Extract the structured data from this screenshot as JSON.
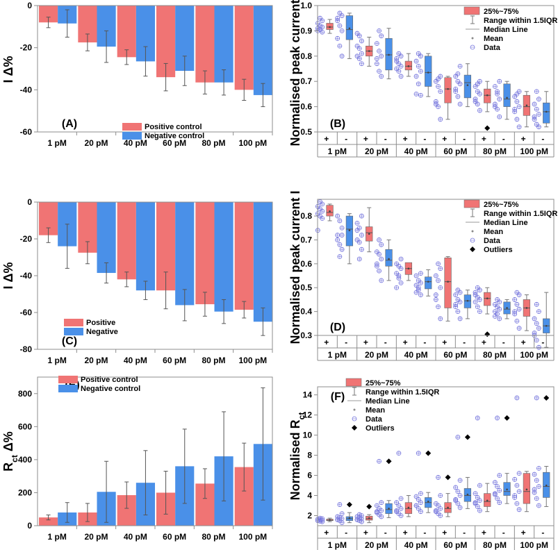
{
  "colors": {
    "pos": "#f07474",
    "neg": "#4a90e8",
    "dot": "#7777dd",
    "axis": "#8c8c8c",
    "err": "#555555"
  },
  "chart_data": [
    {
      "id": "A",
      "type": "bar",
      "panel_label": "(A)",
      "ylabel_main": "I",
      "ylabel_rest": " Δ%",
      "categories": [
        "1 pM",
        "20 pM",
        "40 pM",
        "60 pM",
        "80 pM",
        "100 pM"
      ],
      "ylim": [
        -60,
        0
      ],
      "yticks": [
        "0",
        "-20",
        "-40",
        "-60"
      ],
      "series": [
        {
          "name": "Positive control",
          "values": [
            -8,
            -17.5,
            -24.5,
            -34,
            -36.5,
            -40
          ],
          "err": [
            2.5,
            4,
            3.5,
            6.5,
            5.5,
            5
          ]
        },
        {
          "name": "Negative control",
          "values": [
            -8.5,
            -19.5,
            -26.5,
            -31,
            -36.5,
            -42.5
          ],
          "err": [
            6.5,
            7.5,
            7,
            7,
            6,
            5.5
          ]
        }
      ]
    },
    {
      "id": "B",
      "type": "box",
      "panel_label": "(B)",
      "ylabel": "Normalised peak current I",
      "ylim": [
        0.5,
        1.0
      ],
      "yticks": [
        "0.5",
        "0.6",
        "0.7",
        "0.8",
        "0.9",
        "1.0"
      ],
      "groups": [
        "1 pM",
        "20 pM",
        "40 pM",
        "60 pM",
        "80 pM",
        "100 pM"
      ],
      "signs": [
        "+",
        "-"
      ],
      "legend": [
        "25%~75%",
        "Range within 1.5IQR",
        "Median Line",
        "Mean",
        "Data"
      ],
      "boxes": [
        {
          "q1": 0.905,
          "q3": 0.93,
          "med": 0.915,
          "mean": 0.915,
          "wlo": 0.89,
          "whi": 0.945,
          "data": [
            0.895,
            0.905,
            0.91,
            0.915,
            0.92,
            0.93,
            0.94,
            0.95,
            0.9
          ]
        },
        {
          "q1": 0.865,
          "q3": 0.96,
          "med": 0.905,
          "mean": 0.91,
          "wlo": 0.79,
          "whi": 0.97,
          "data": [
            0.8,
            0.84,
            0.87,
            0.9,
            0.92,
            0.94,
            0.96,
            0.97,
            0.95
          ]
        },
        {
          "q1": 0.8,
          "q3": 0.84,
          "med": 0.82,
          "mean": 0.82,
          "wlo": 0.76,
          "whi": 0.875,
          "data": [
            0.77,
            0.79,
            0.8,
            0.81,
            0.83,
            0.84,
            0.86,
            0.88,
            0.89
          ]
        },
        {
          "q1": 0.745,
          "q3": 0.87,
          "med": 0.805,
          "mean": 0.805,
          "wlo": 0.71,
          "whi": 0.91,
          "data": [
            0.72,
            0.74,
            0.77,
            0.8,
            0.82,
            0.85,
            0.88,
            0.9,
            0.79
          ]
        },
        {
          "q1": 0.745,
          "q3": 0.78,
          "med": 0.76,
          "mean": 0.76,
          "wlo": 0.72,
          "whi": 0.81,
          "data": [
            0.72,
            0.74,
            0.75,
            0.76,
            0.77,
            0.78,
            0.8,
            0.81,
            0.79
          ]
        },
        {
          "q1": 0.68,
          "q3": 0.8,
          "med": 0.735,
          "mean": 0.735,
          "wlo": 0.64,
          "whi": 0.81,
          "data": [
            0.645,
            0.69,
            0.72,
            0.74,
            0.76,
            0.78,
            0.8,
            0.81,
            0.65
          ]
        },
        {
          "q1": 0.615,
          "q3": 0.715,
          "med": 0.67,
          "mean": 0.67,
          "wlo": 0.55,
          "whi": 0.72,
          "data": [
            0.55,
            0.6,
            0.62,
            0.66,
            0.68,
            0.7,
            0.72,
            0.71,
            0.61
          ]
        },
        {
          "q1": 0.635,
          "q3": 0.725,
          "med": 0.695,
          "mean": 0.685,
          "wlo": 0.6,
          "whi": 0.77,
          "data": [
            0.61,
            0.64,
            0.66,
            0.69,
            0.7,
            0.72,
            0.76,
            0.73,
            0.67
          ]
        },
        {
          "q1": 0.615,
          "q3": 0.67,
          "med": 0.645,
          "mean": 0.645,
          "wlo": 0.58,
          "whi": 0.7,
          "data": [
            0.585,
            0.61,
            0.63,
            0.65,
            0.66,
            0.68,
            0.7,
            0.69,
            0.62
          ]
        },
        {
          "q1": 0.6,
          "q3": 0.69,
          "med": 0.63,
          "mean": 0.635,
          "wlo": 0.55,
          "whi": 0.7,
          "data": [
            0.56,
            0.59,
            0.61,
            0.63,
            0.65,
            0.68,
            0.7,
            0.66,
            0.6
          ]
        },
        {
          "q1": 0.565,
          "q3": 0.645,
          "med": 0.6,
          "mean": 0.605,
          "wlo": 0.52,
          "whi": 0.66,
          "data": [
            0.52,
            0.55,
            0.58,
            0.6,
            0.62,
            0.64,
            0.66,
            0.65,
            0.59
          ]
        },
        {
          "q1": 0.535,
          "q3": 0.615,
          "med": 0.58,
          "mean": 0.58,
          "wlo": 0.52,
          "whi": 0.66,
          "data": [
            0.52,
            0.53,
            0.55,
            0.57,
            0.59,
            0.61,
            0.63,
            0.66,
            0.56
          ]
        }
      ],
      "outliers": [
        {
          "box": 8,
          "value": 0.515
        }
      ]
    },
    {
      "id": "C",
      "type": "bar",
      "panel_label": "(C)",
      "ylabel_main": "I",
      "ylabel_rest": " Δ%",
      "categories": [
        "1 pM",
        "20 pM",
        "40 pM",
        "60 pM",
        "80 pM",
        "100 pM"
      ],
      "ylim": [
        -80,
        0
      ],
      "yticks": [
        "0",
        "-20",
        "-40",
        "-60",
        "-80"
      ],
      "series": [
        {
          "name": "Positive",
          "values": [
            -18,
            -27.5,
            -42,
            -48,
            -55.5,
            -58.5
          ],
          "err": [
            4,
            6,
            4,
            10,
            6.5,
            4.5
          ]
        },
        {
          "name": "Negative",
          "values": [
            -24,
            -38.5,
            -48,
            -56,
            -59.5,
            -65
          ],
          "err": [
            12,
            5.5,
            5,
            8.5,
            6.5,
            7.5
          ]
        }
      ]
    },
    {
      "id": "D",
      "type": "box",
      "panel_label": "(D)",
      "ylabel": "Normalised peak current I",
      "ylim": [
        0.3,
        0.87
      ],
      "yticks": [
        "0.3",
        "0.4",
        "0.5",
        "0.6",
        "0.7",
        "0.8"
      ],
      "groups": [
        "1 pM",
        "20 pM",
        "40 pM",
        "60 pM",
        "80 pM",
        "100 pM"
      ],
      "signs": [
        "+",
        "-"
      ],
      "legend": [
        "25%~75%",
        "Range within 1.5IQR",
        "Median Line",
        "Mean",
        "Data",
        "Outliers"
      ],
      "boxes": [
        {
          "q1": 0.8,
          "q3": 0.845,
          "med": 0.815,
          "mean": 0.82,
          "wlo": 0.78,
          "whi": 0.85,
          "data": [
            0.79,
            0.8,
            0.81,
            0.82,
            0.83,
            0.84,
            0.85,
            0.86,
            0.74
          ]
        },
        {
          "q1": 0.675,
          "q3": 0.8,
          "med": 0.745,
          "mean": 0.74,
          "wlo": 0.6,
          "whi": 0.81,
          "data": [
            0.66,
            0.68,
            0.72,
            0.75,
            0.78,
            0.8,
            0.72,
            0.63,
            0.7
          ]
        },
        {
          "q1": 0.695,
          "q3": 0.755,
          "med": 0.73,
          "mean": 0.725,
          "wlo": 0.65,
          "whi": 0.835,
          "data": [
            0.66,
            0.69,
            0.7,
            0.72,
            0.75,
            0.77,
            0.8,
            0.62,
            0.74
          ]
        },
        {
          "q1": 0.59,
          "q3": 0.66,
          "med": 0.615,
          "mean": 0.62,
          "wlo": 0.53,
          "whi": 0.7,
          "data": [
            0.53,
            0.57,
            0.6,
            0.62,
            0.64,
            0.65,
            0.68,
            0.7,
            0.59
          ]
        },
        {
          "q1": 0.555,
          "q3": 0.605,
          "med": 0.58,
          "mean": 0.58,
          "wlo": 0.53,
          "whi": 0.6,
          "data": [
            0.52,
            0.54,
            0.56,
            0.58,
            0.59,
            0.6,
            0.62,
            0.55,
            0.5
          ]
        },
        {
          "q1": 0.495,
          "q3": 0.545,
          "med": 0.525,
          "mean": 0.525,
          "wlo": 0.465,
          "whi": 0.575,
          "data": [
            0.47,
            0.49,
            0.51,
            0.52,
            0.53,
            0.55,
            0.56,
            0.5,
            0.48
          ]
        },
        {
          "q1": 0.415,
          "q3": 0.625,
          "med": 0.525,
          "mean": 0.525,
          "wlo": 0.36,
          "whi": 0.63,
          "data": [
            0.37,
            0.42,
            0.47,
            0.5,
            0.53,
            0.55,
            0.58,
            0.6,
            0.45
          ]
        },
        {
          "q1": 0.415,
          "q3": 0.47,
          "med": 0.445,
          "mean": 0.445,
          "wlo": 0.37,
          "whi": 0.49,
          "data": [
            0.37,
            0.4,
            0.42,
            0.44,
            0.45,
            0.47,
            0.48,
            0.49,
            0.43
          ]
        },
        {
          "q1": 0.425,
          "q3": 0.48,
          "med": 0.455,
          "mean": 0.455,
          "wlo": 0.39,
          "whi": 0.5,
          "data": [
            0.4,
            0.42,
            0.44,
            0.45,
            0.46,
            0.48,
            0.49,
            0.5,
            0.47
          ]
        },
        {
          "q1": 0.39,
          "q3": 0.44,
          "med": 0.41,
          "mean": 0.415,
          "wlo": 0.37,
          "whi": 0.45,
          "data": [
            0.37,
            0.39,
            0.4,
            0.41,
            0.42,
            0.43,
            0.44,
            0.45,
            0.38
          ]
        },
        {
          "q1": 0.38,
          "q3": 0.45,
          "med": 0.415,
          "mean": 0.415,
          "wlo": 0.32,
          "whi": 0.47,
          "data": [
            0.33,
            0.36,
            0.39,
            0.41,
            0.43,
            0.45,
            0.47,
            0.48,
            0.4
          ]
        },
        {
          "q1": 0.31,
          "q3": 0.37,
          "med": 0.34,
          "mean": 0.34,
          "wlo": 0.25,
          "whi": 0.48,
          "data": [
            0.25,
            0.28,
            0.31,
            0.33,
            0.35,
            0.37,
            0.4,
            0.43,
            0.3
          ]
        }
      ],
      "outliers": [
        {
          "box": 8,
          "value": 0.305
        }
      ]
    },
    {
      "id": "E",
      "type": "bar",
      "panel_label": "(E)",
      "ylabel_main": "R",
      "ylabel_sub": "ct",
      "ylabel_rest": " Δ%",
      "categories": [
        "1 pM",
        "20 pM",
        "40 pM",
        "60 pM",
        "80 pM",
        "100 pM"
      ],
      "ylim": [
        0,
        900
      ],
      "yticks": [
        "0",
        "200",
        "400",
        "600",
        "800"
      ],
      "series": [
        {
          "name": "Positive control",
          "values": [
            50,
            80,
            185,
            200,
            255,
            355
          ],
          "err": [
            15,
            55,
            80,
            130,
            90,
            145
          ]
        },
        {
          "name": "Negative control",
          "values": [
            80,
            205,
            260,
            360,
            420,
            495
          ],
          "err": [
            60,
            185,
            195,
            225,
            270,
            340
          ]
        }
      ]
    },
    {
      "id": "F",
      "type": "box",
      "panel_label": "(F)",
      "ylabel_main": "Normalised R",
      "ylabel_sub": "ct",
      "ylim": [
        1,
        14.8
      ],
      "yticks": [
        "2",
        "4",
        "6",
        "8",
        "10",
        "12",
        "14"
      ],
      "groups": [
        "1 pM",
        "20 pM",
        "40 pM",
        "60 pM",
        "80 pM",
        "100 pM"
      ],
      "signs": [
        "+",
        "-"
      ],
      "legend": [
        "25%~75%",
        "Range within 1.5IQR",
        "Median Line",
        "Mean",
        "Data",
        "Outliers"
      ],
      "boxes": [
        {
          "q1": 1.5,
          "q3": 1.65,
          "med": 1.55,
          "mean": 1.57,
          "wlo": 1.4,
          "whi": 1.75,
          "data": [
            1.4,
            1.45,
            1.5,
            1.55,
            1.6,
            1.65,
            1.7,
            1.75,
            1.5
          ]
        },
        {
          "q1": 1.5,
          "q3": 1.9,
          "med": 1.7,
          "mean": 1.75,
          "wlo": 1.3,
          "whi": 2.3,
          "data": [
            1.3,
            1.5,
            1.6,
            1.7,
            1.8,
            1.9,
            2.2,
            3.1,
            1.6
          ]
        },
        {
          "q1": 1.55,
          "q3": 1.95,
          "med": 1.7,
          "mean": 1.75,
          "wlo": 1.3,
          "whi": 2.1,
          "data": [
            1.4,
            1.5,
            1.6,
            1.7,
            1.8,
            1.9,
            2.0,
            2.1,
            1.6
          ]
        },
        {
          "q1": 2.2,
          "q3": 3.2,
          "med": 2.6,
          "mean": 2.7,
          "wlo": 1.8,
          "whi": 3.5,
          "data": [
            1.9,
            2.1,
            2.3,
            2.5,
            2.7,
            3.0,
            3.3,
            7.4,
            2.4
          ]
        },
        {
          "q1": 2.2,
          "q3": 3.3,
          "med": 2.7,
          "mean": 2.8,
          "wlo": 1.9,
          "whi": 4.0,
          "data": [
            2.0,
            2.2,
            2.5,
            2.7,
            3.0,
            3.3,
            3.7,
            8.2,
            2.4
          ]
        },
        {
          "q1": 2.8,
          "q3": 3.8,
          "med": 3.3,
          "mean": 3.4,
          "wlo": 2.3,
          "whi": 4.3,
          "data": [
            2.4,
            2.7,
            3.0,
            3.3,
            3.6,
            3.9,
            4.2,
            8.2,
            3.0
          ]
        },
        {
          "q1": 2.3,
          "q3": 3.3,
          "med": 2.7,
          "mean": 2.8,
          "wlo": 1.9,
          "whi": 4.2,
          "data": [
            2.0,
            2.2,
            2.5,
            2.7,
            3.0,
            3.2,
            4.0,
            5.8,
            2.4
          ]
        },
        {
          "q1": 3.4,
          "q3": 4.7,
          "med": 4.0,
          "mean": 4.1,
          "wlo": 2.7,
          "whi": 5.8,
          "data": [
            2.8,
            3.2,
            3.6,
            4.0,
            4.4,
            4.8,
            5.5,
            9.8,
            3.5
          ]
        },
        {
          "q1": 2.9,
          "q3": 4.2,
          "med": 3.4,
          "mean": 3.5,
          "wlo": 2.4,
          "whi": 5.2,
          "data": [
            2.5,
            2.9,
            3.2,
            3.5,
            3.8,
            4.2,
            5.0,
            11.7,
            3.3
          ]
        },
        {
          "q1": 4.0,
          "q3": 5.3,
          "med": 4.4,
          "mean": 4.6,
          "wlo": 3.2,
          "whi": 6.2,
          "data": [
            3.3,
            3.7,
            4.1,
            4.5,
            4.9,
            5.3,
            6.0,
            11.7,
            4.2
          ]
        },
        {
          "q1": 3.2,
          "q3": 6.2,
          "med": 4.4,
          "mean": 4.6,
          "wlo": 2.4,
          "whi": 6.4,
          "data": [
            2.6,
            3.2,
            3.8,
            4.4,
            5.0,
            5.6,
            6.2,
            13.7,
            4.0
          ]
        },
        {
          "q1": 3.8,
          "q3": 6.3,
          "med": 4.9,
          "mean": 5.0,
          "wlo": 2.9,
          "whi": 6.9,
          "data": [
            3.0,
            3.7,
            4.3,
            4.9,
            5.5,
            6.1,
            6.7,
            13.7,
            4.6
          ]
        }
      ],
      "outliers": [
        {
          "box": 1,
          "value": 3.1
        },
        {
          "box": 2,
          "value": 2.9
        },
        {
          "box": 3,
          "value": 7.4
        },
        {
          "box": 5,
          "value": 8.2
        },
        {
          "box": 6,
          "value": 5.8
        },
        {
          "box": 7,
          "value": 9.8
        },
        {
          "box": 9,
          "value": 11.7
        },
        {
          "box": 11,
          "value": 13.7
        }
      ]
    }
  ]
}
